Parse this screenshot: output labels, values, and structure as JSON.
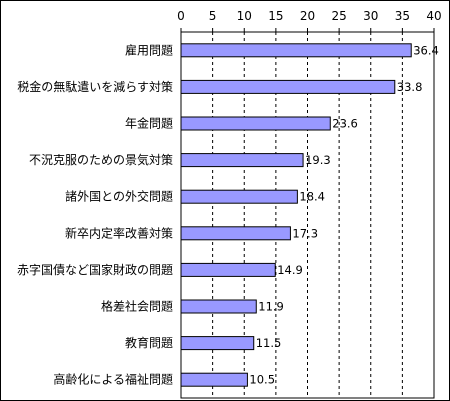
{
  "chart_data": {
    "type": "bar",
    "orientation": "horizontal",
    "title": "",
    "xlabel": "",
    "ylabel": "",
    "xlim": [
      0,
      40
    ],
    "x_ticks": [
      0,
      5,
      10,
      15,
      20,
      25,
      30,
      35,
      40
    ],
    "grid": "vertical dashed",
    "legend": "none",
    "bar_color": "#9999ff",
    "categories": [
      "雇用問題",
      "税金の無駄遣いを減らす対策",
      "年金問題",
      "不況克服のための景気対策",
      "諸外国との外交問題",
      "新卒内定率改善対策",
      "赤字国債など国家財政の問題",
      "格差社会問題",
      "教育問題",
      "高齢化による福祉問題"
    ],
    "values": [
      36.4,
      33.8,
      23.6,
      19.3,
      18.4,
      17.3,
      14.9,
      11.9,
      11.5,
      10.5
    ],
    "value_labels": [
      "36.4",
      "33.8",
      "23.6",
      "19.3",
      "18.4",
      "17.3",
      "14.9",
      "11.9",
      "11.5",
      "10.5"
    ]
  }
}
